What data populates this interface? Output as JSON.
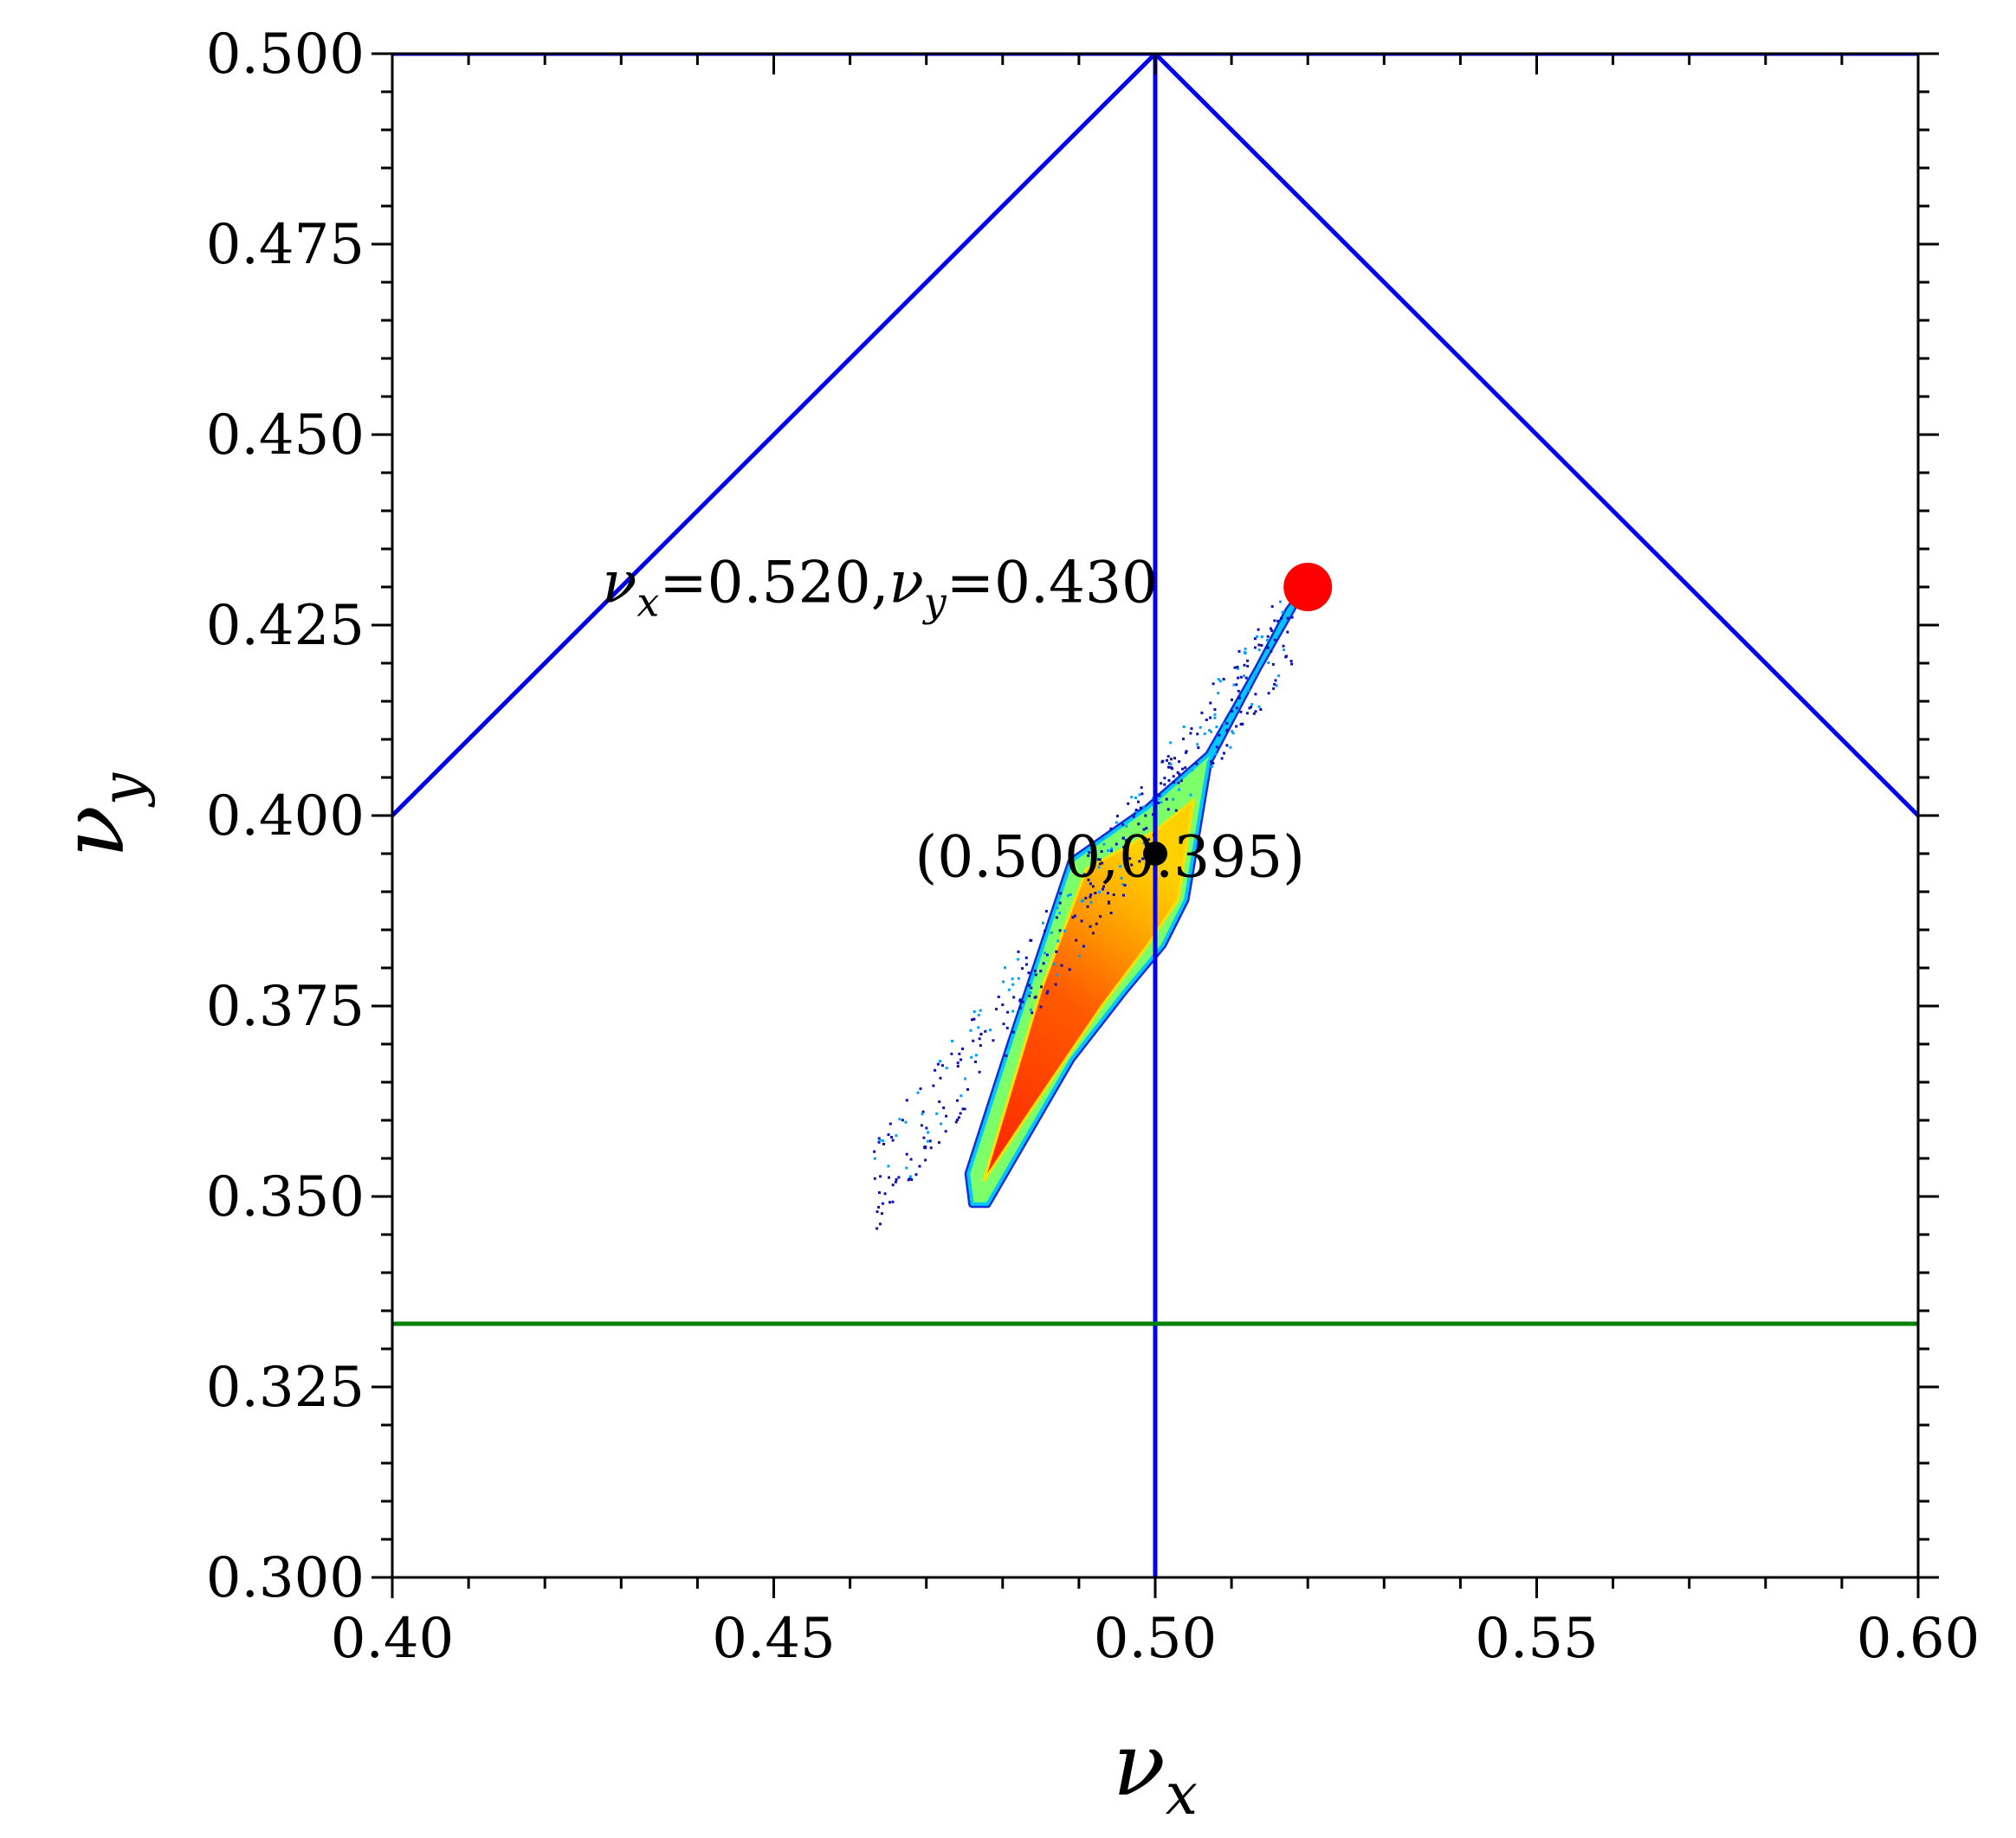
{
  "chart_data": {
    "type": "scatter",
    "title": "",
    "xlabel": "ν",
    "xlabel_sub": "x",
    "ylabel": "ν",
    "ylabel_sub": "y",
    "xlim": [
      0.4,
      0.6
    ],
    "ylim": [
      0.3,
      0.5
    ],
    "xticks": [
      0.4,
      0.45,
      0.5,
      0.55,
      0.6
    ],
    "xtick_labels": [
      "0.40",
      "0.45",
      "0.50",
      "0.55",
      "0.60"
    ],
    "yticks": [
      0.3,
      0.325,
      0.35,
      0.375,
      0.4,
      0.425,
      0.45,
      0.475,
      0.5
    ],
    "ytick_labels": [
      "0.300",
      "0.325",
      "0.350",
      "0.375",
      "0.400",
      "0.425",
      "0.450",
      "0.475",
      "0.500"
    ],
    "grid": false,
    "lines": [
      {
        "name": "resonance-left-diagonal",
        "color": "#0000ee",
        "x": [
          0.4,
          0.5
        ],
        "y": [
          0.4,
          0.5
        ]
      },
      {
        "name": "resonance-right-diagonal",
        "color": "#0000ee",
        "x": [
          0.5,
          0.6
        ],
        "y": [
          0.5,
          0.4
        ]
      },
      {
        "name": "resonance-vertical",
        "color": "#0000ee",
        "x": [
          0.5,
          0.5
        ],
        "y": [
          0.3,
          0.5
        ]
      },
      {
        "name": "resonance-top",
        "color": "#0000ee",
        "x": [
          0.4,
          0.6
        ],
        "y": [
          0.5,
          0.5
        ]
      },
      {
        "name": "resonance-third-order",
        "color": "#008000",
        "x": [
          0.4,
          0.6
        ],
        "y": [
          0.3333,
          0.3333
        ]
      }
    ],
    "density_region": {
      "colormap": "jet",
      "outline": [
        [
          0.476,
          0.349
        ],
        [
          0.4755,
          0.353
        ],
        [
          0.481,
          0.37
        ],
        [
          0.489,
          0.394
        ],
        [
          0.499,
          0.401
        ],
        [
          0.507,
          0.408
        ],
        [
          0.519,
          0.429
        ],
        [
          0.5175,
          0.427
        ],
        [
          0.507,
          0.407
        ],
        [
          0.504,
          0.389
        ],
        [
          0.501,
          0.383
        ],
        [
          0.496,
          0.377
        ],
        [
          0.489,
          0.368
        ],
        [
          0.478,
          0.349
        ]
      ],
      "core": [
        [
          0.4775,
          0.352
        ],
        [
          0.485,
          0.377
        ],
        [
          0.491,
          0.393
        ],
        [
          0.5,
          0.398
        ],
        [
          0.505,
          0.402
        ],
        [
          0.503,
          0.389
        ],
        [
          0.499,
          0.383
        ],
        [
          0.493,
          0.375
        ],
        [
          0.4835,
          0.361
        ]
      ]
    },
    "points": [
      {
        "name": "working-point",
        "x": 0.52,
        "y": 0.43,
        "color": "#ff0000",
        "size": "large"
      },
      {
        "name": "tune-footprint-center",
        "x": 0.5,
        "y": 0.395,
        "color": "#000000",
        "size": "small"
      }
    ],
    "annotations": [
      {
        "name": "working-point-label",
        "sym1": "ν",
        "sub1": "x",
        "val1": "=0.520,",
        "sym2": "ν",
        "sub2": "y",
        "val2": "=0.430",
        "x": 0.4275,
        "y": 0.4305
      },
      {
        "name": "center-label",
        "text": "(0.500,0.395)",
        "x": 0.4685,
        "y": 0.3945
      }
    ]
  }
}
